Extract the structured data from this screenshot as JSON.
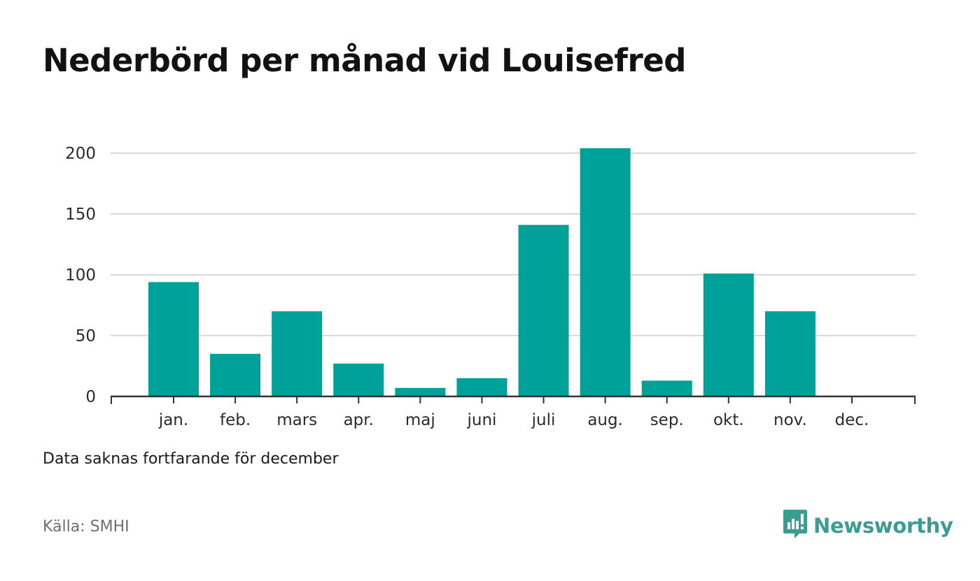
{
  "title": "Nederbörd per månad vid Louisefred",
  "note": "Data saknas fortfarande för december",
  "source": "Källa: SMHI",
  "brand": {
    "name": "Newsworthy",
    "icon": "newsworthy-logo-icon",
    "color": "#3a9d94"
  },
  "colors": {
    "bar": "#00a199",
    "grid": "#d9d9d9",
    "axis": "#333333"
  },
  "chart_data": {
    "type": "bar",
    "categories": [
      "jan.",
      "feb.",
      "mars",
      "apr.",
      "maj",
      "juni",
      "juli",
      "aug.",
      "sep.",
      "okt.",
      "nov.",
      "dec."
    ],
    "values": [
      94,
      35,
      70,
      27,
      7,
      15,
      141,
      204,
      13,
      101,
      70,
      null
    ],
    "ylim": [
      0,
      200
    ],
    "yticks": [
      0,
      50,
      100,
      150,
      200
    ],
    "grid": true
  }
}
